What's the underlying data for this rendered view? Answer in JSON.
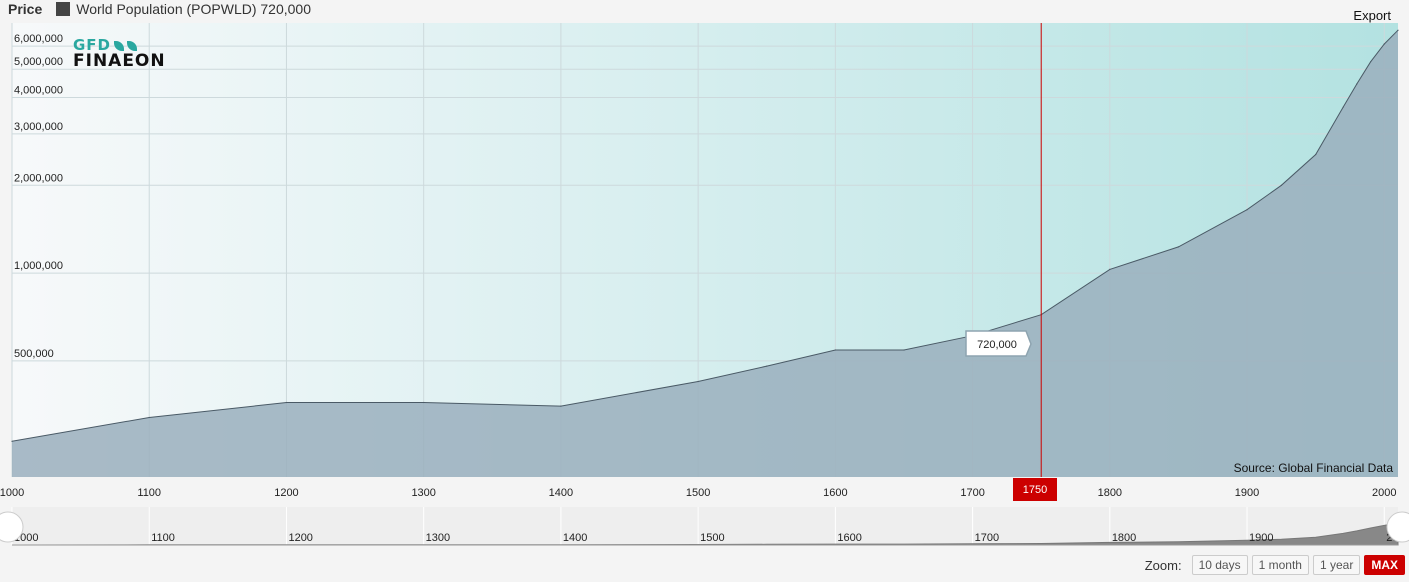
{
  "legend": {
    "label": "Price",
    "series_text": "World Population (POPWLD) 720,000",
    "swatch_color": "#444444"
  },
  "export_label": "Export",
  "logo": {
    "line1": "GFD",
    "line2": "FINAEON"
  },
  "source_text": "Source: Global Financial Data",
  "tooltip": {
    "text": "720,000"
  },
  "crosshair": {
    "x_label": "1750",
    "x_value": 1750,
    "color": "#cc0000"
  },
  "zoom": {
    "label": "Zoom:",
    "buttons": [
      "10 days",
      "1 month",
      "1 year",
      "MAX"
    ],
    "active": "MAX"
  },
  "chart_data": {
    "type": "area",
    "title": "",
    "xlabel": "",
    "ylabel": "",
    "yscale": "log",
    "xlim": [
      1000,
      2010
    ],
    "x_ticks": [
      "1000",
      "1100",
      "1200",
      "1300",
      "1400",
      "1500",
      "1600",
      "1700",
      "1800",
      "1900",
      "2000"
    ],
    "y_ticks": [
      "500,000",
      "1,000,000",
      "2,000,000",
      "3,000,000",
      "4,000,000",
      "5,000,000",
      "6,000,000"
    ],
    "grid": true,
    "series": [
      {
        "name": "World Population (POPWLD)",
        "color": "#9aafbd",
        "x": [
          1000,
          1100,
          1200,
          1300,
          1400,
          1500,
          1550,
          1600,
          1650,
          1700,
          1750,
          1800,
          1850,
          1900,
          1925,
          1950,
          1970,
          1980,
          1990,
          2000,
          2010
        ],
        "y": [
          265000,
          320000,
          360000,
          360000,
          350000,
          425000,
          480000,
          545000,
          545000,
          610000,
          720000,
          1030000,
          1230000,
          1650000,
          2000000,
          2550000,
          3700000,
          4450000,
          5300000,
          6100000,
          6800000
        ]
      }
    ],
    "navigator": {
      "x_ticks": [
        "1000",
        "1100",
        "1200",
        "1300",
        "1400",
        "1500",
        "1600",
        "1700",
        "1800",
        "1900",
        "2000"
      ]
    }
  }
}
